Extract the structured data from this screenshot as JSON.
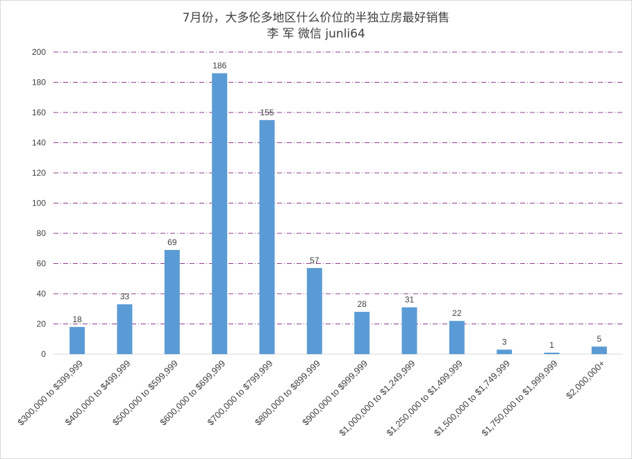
{
  "chart_data": {
    "type": "bar",
    "title": "7月份，大多伦多地区什么价位的半独立房最好销售",
    "subtitle": "李 军  微信 junli64",
    "xlabel": "",
    "ylabel": "",
    "ylim": [
      0,
      200
    ],
    "yticks": [
      0,
      20,
      40,
      60,
      80,
      100,
      120,
      140,
      160,
      180,
      200
    ],
    "grid": true,
    "legend": "none",
    "bar_color": "#5b9bd5",
    "grid_color": "#8e3a8e",
    "categories": [
      "$300,000 to $399,999",
      "$400,000 to $499,999",
      "$500,000 to $599,999",
      "$600,000 to $699,999",
      "$700,000 to $799,999",
      "$800,000 to $899,999",
      "$900,000 to $999,999",
      "$1,000,000 to $1,249,999",
      "$1,250,000 to $1,499,999",
      "$1,500,000 to $1,749,999",
      "$1,750,000 to $1,999,999",
      "$2,000,000+"
    ],
    "values": [
      18,
      33,
      69,
      186,
      155,
      57,
      28,
      31,
      22,
      3,
      1,
      5
    ]
  }
}
